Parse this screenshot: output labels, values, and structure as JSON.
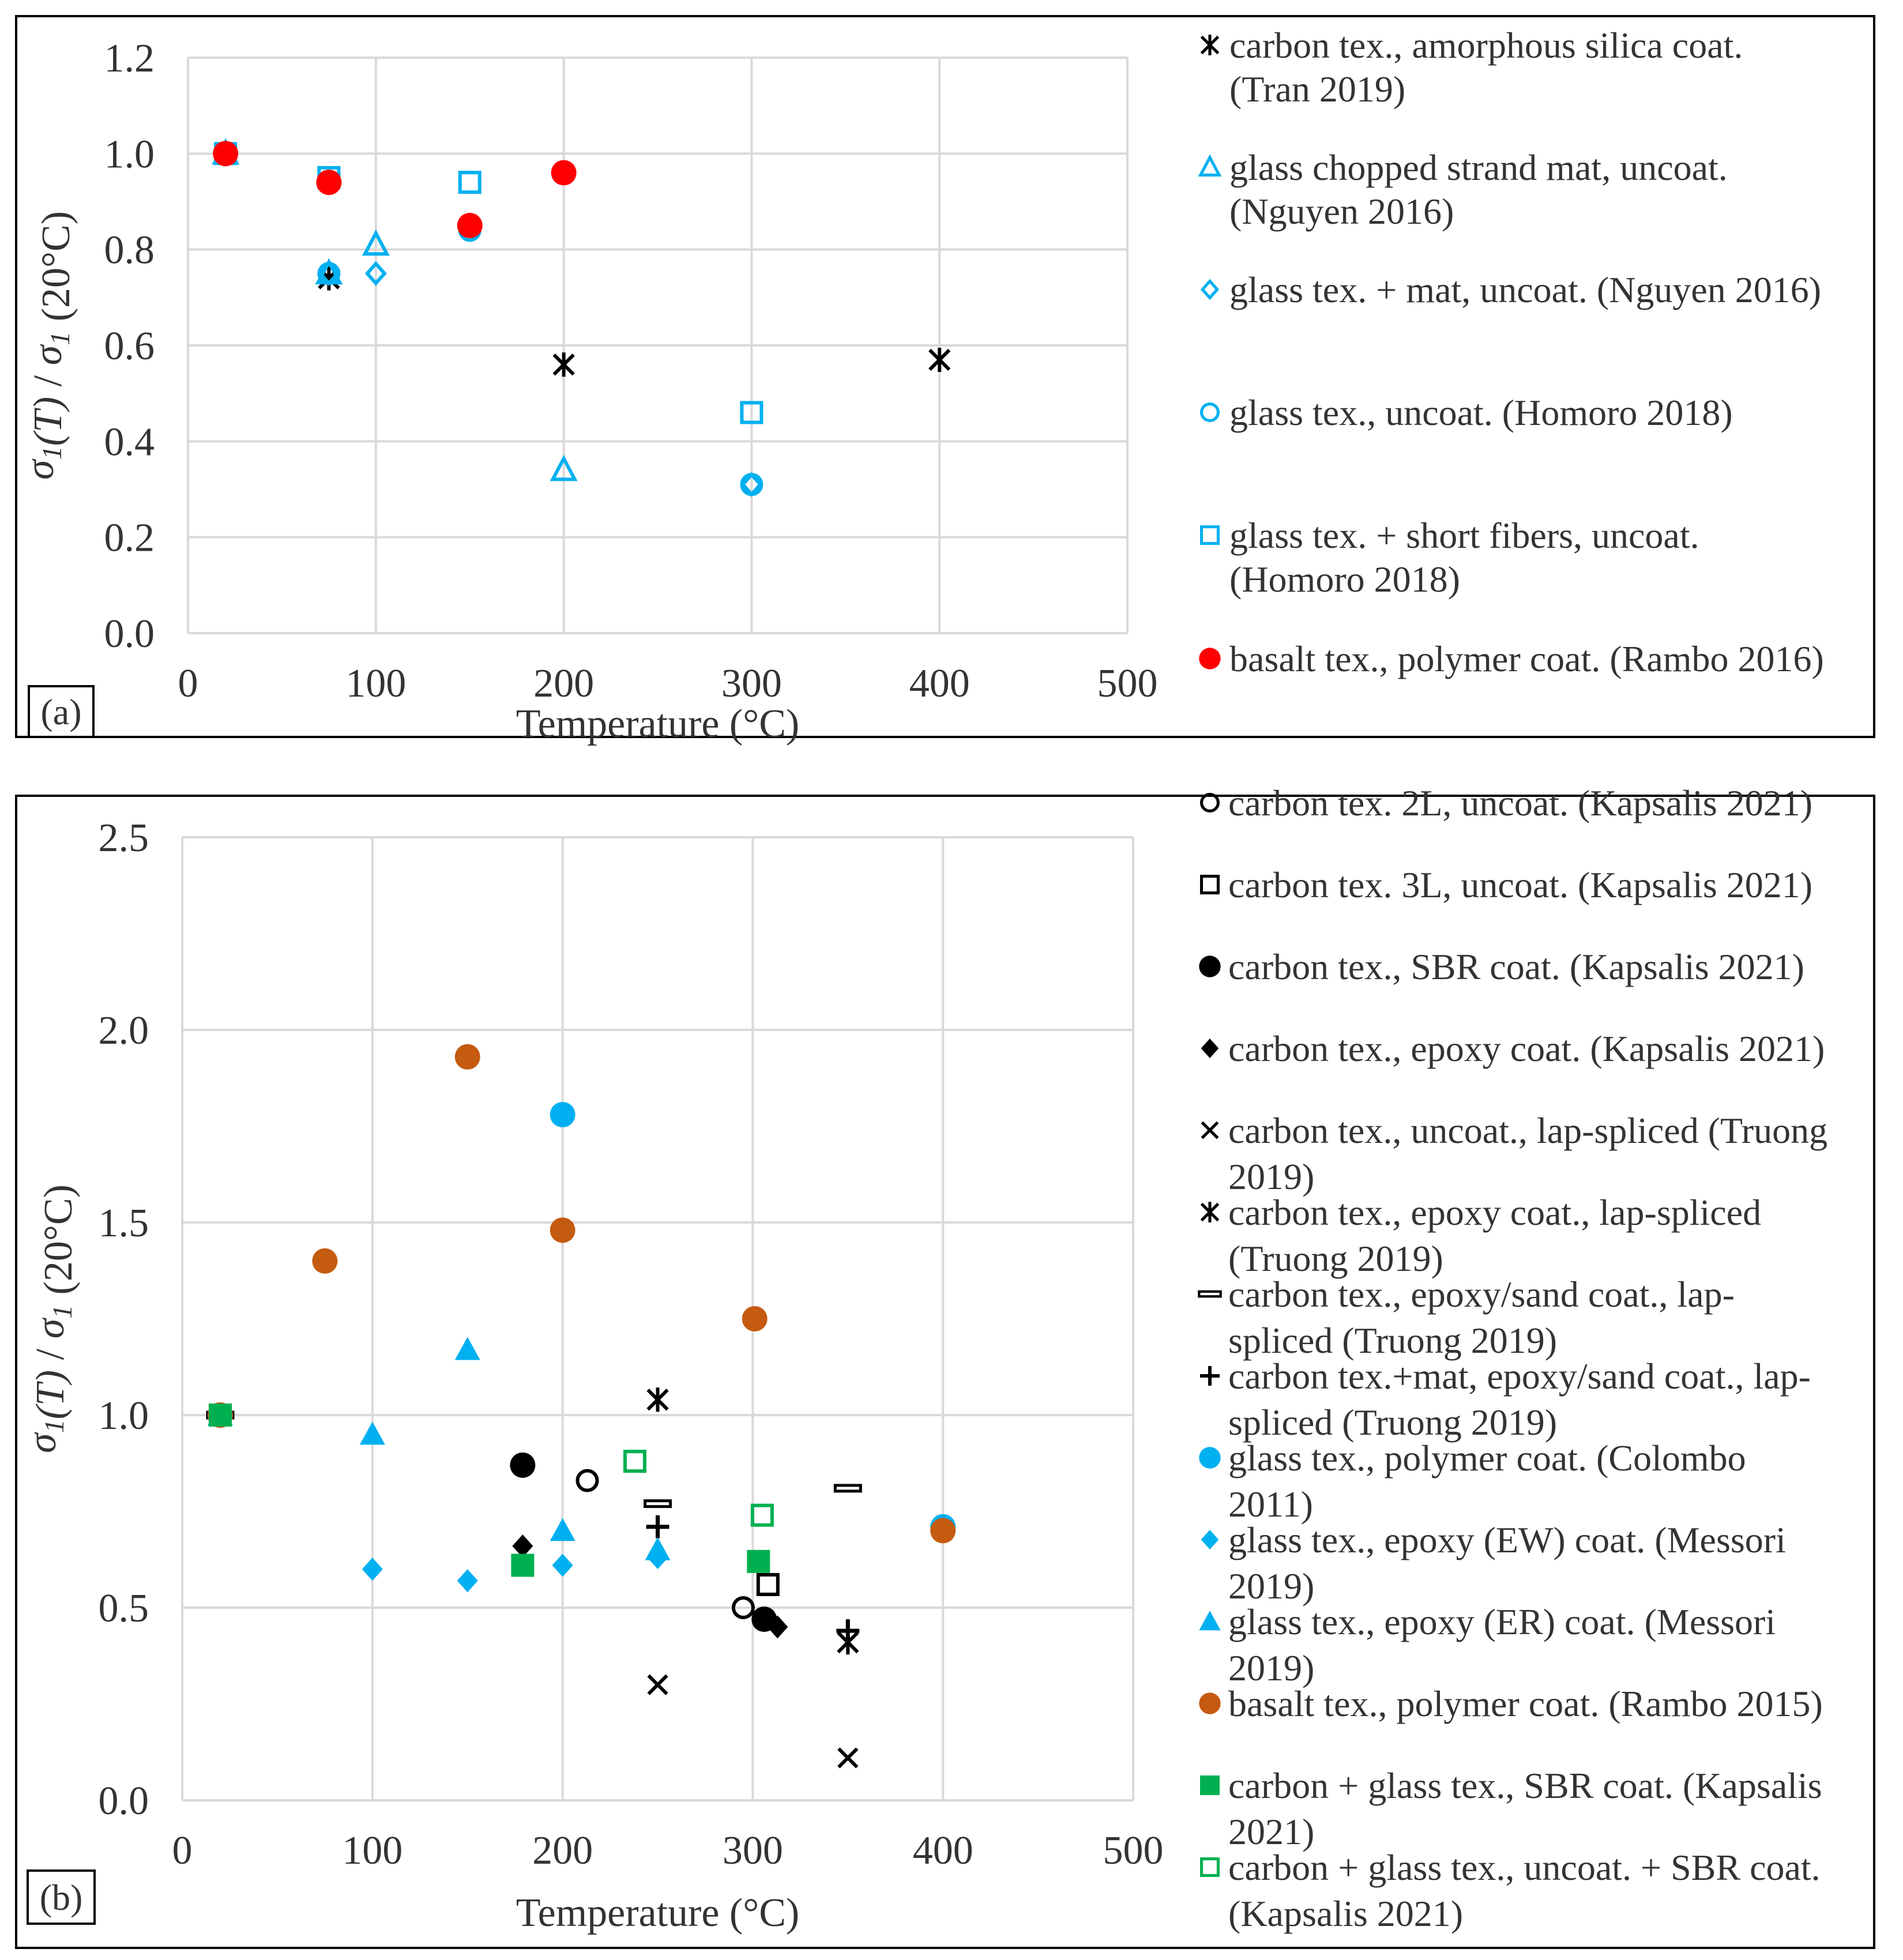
{
  "colors": {
    "black": "#000000",
    "blue": "#00b0f0",
    "red": "#ff0000",
    "orange": "#c55a11",
    "green": "#00b050",
    "grid": "#d9d9d9",
    "axis_text": "#404040"
  },
  "chart_data": [
    {
      "type": "scatter",
      "panel_label": "(a)",
      "xlabel": "Temperature (°C)",
      "ylabel": "σ1(T) / σ1 (20°C)",
      "ylabel_parts": [
        {
          "t": "σ",
          "it": true
        },
        {
          "t": "1",
          "it": true,
          "sub": true
        },
        {
          "t": "(",
          "it": true
        },
        {
          "t": "T",
          "it": true
        },
        {
          "t": ")",
          "it": true
        },
        {
          "t": " / ",
          "it": false
        },
        {
          "t": "σ",
          "it": true
        },
        {
          "t": "1",
          "it": true,
          "sub": true
        },
        {
          "t": " (20°C)",
          "it": false
        }
      ],
      "xlim": [
        0,
        500
      ],
      "ylim": [
        0,
        1.2
      ],
      "xticks": [
        "0",
        "100",
        "200",
        "300",
        "400",
        "500"
      ],
      "xtick_values": [
        0,
        100,
        200,
        300,
        400,
        500
      ],
      "yticks": [
        "0.0",
        "0.2",
        "0.4",
        "0.6",
        "0.8",
        "1.0",
        "1.2"
      ],
      "ytick_values": [
        0,
        0.2,
        0.4,
        0.6,
        0.8,
        1.0,
        1.2
      ],
      "series": [
        {
          "name": "carbon tex., amorphous silica coat. (Tran 2019)",
          "label_lines": [
            "carbon tex., amorphous silica coat.",
            "(Tran 2019)"
          ],
          "marker": "asterisk",
          "color": "#000000",
          "x": [
            20,
            75,
            200,
            400
          ],
          "y": [
            1.0,
            0.74,
            0.56,
            0.57
          ]
        },
        {
          "name": "glass chopped strand mat, uncoat. (Nguyen 2016)",
          "label_lines": [
            "glass chopped strand mat, uncoat.",
            "(Nguyen 2016)"
          ],
          "marker": "triangle-open",
          "color": "#00b0f0",
          "x": [
            20,
            75,
            100,
            200
          ],
          "y": [
            1.0,
            0.75,
            0.81,
            0.34
          ]
        },
        {
          "name": "glass tex. + mat, uncoat. (Nguyen 2016)",
          "label_lines": [
            "glass tex. + mat, uncoat. (Nguyen 2016)"
          ],
          "marker": "diamond-open",
          "color": "#00b0f0",
          "x": [
            20,
            75,
            100,
            300
          ],
          "y": [
            1.0,
            0.75,
            0.75,
            0.31
          ]
        },
        {
          "name": "glass tex., uncoat. (Homoro 2018)",
          "label_lines": [
            "glass tex., uncoat. (Homoro 2018)"
          ],
          "marker": "circle-open",
          "color": "#00b0f0",
          "x": [
            20,
            75,
            150,
            300
          ],
          "y": [
            1.0,
            0.75,
            0.84,
            0.31
          ]
        },
        {
          "name": "glass tex. + short fibers, uncoat. (Homoro 2018)",
          "label_lines": [
            "glass tex. + short fibers, uncoat.",
            "(Homoro 2018)"
          ],
          "marker": "square-open",
          "color": "#00b0f0",
          "x": [
            20,
            75,
            150,
            300
          ],
          "y": [
            1.0,
            0.95,
            0.94,
            0.46
          ]
        },
        {
          "name": "basalt tex., polymer coat. (Rambo 2016)",
          "label_lines": [
            "basalt tex., polymer coat. (Rambo 2016)"
          ],
          "marker": "circle-filled",
          "color": "#ff0000",
          "x": [
            20,
            75,
            150,
            200
          ],
          "y": [
            1.0,
            0.94,
            0.85,
            0.96
          ]
        }
      ]
    },
    {
      "type": "scatter",
      "panel_label": "(b)",
      "xlabel": "Temperature (°C)",
      "ylabel": "σ1(T) / σ1 (20°C)",
      "ylabel_parts": [
        {
          "t": "σ",
          "it": true
        },
        {
          "t": "1",
          "it": true,
          "sub": true
        },
        {
          "t": "(",
          "it": true
        },
        {
          "t": "T",
          "it": true
        },
        {
          "t": ")",
          "it": true
        },
        {
          "t": " / ",
          "it": false
        },
        {
          "t": "σ",
          "it": true
        },
        {
          "t": "1",
          "it": true,
          "sub": true
        },
        {
          "t": " (20°C)",
          "it": false
        }
      ],
      "xlim": [
        0,
        500
      ],
      "ylim": [
        0,
        2.5
      ],
      "xticks": [
        "0",
        "100",
        "200",
        "300",
        "400",
        "500"
      ],
      "xtick_values": [
        0,
        100,
        200,
        300,
        400,
        500
      ],
      "yticks": [
        "0.0",
        "0.5",
        "1.0",
        "1.5",
        "2.0",
        "2.5"
      ],
      "ytick_values": [
        0,
        0.5,
        1.0,
        1.5,
        2.0,
        2.5
      ],
      "series": [
        {
          "name": "carbon tex. 2L, uncoat. (Kapsalis 2021)",
          "label_lines": [
            "carbon tex. 2L, uncoat. (Kapsalis 2021)"
          ],
          "marker": "circle-open",
          "color": "#000000",
          "x": [
            20,
            213,
            295
          ],
          "y": [
            1.0,
            0.83,
            0.5
          ]
        },
        {
          "name": "carbon tex. 3L, uncoat. (Kapsalis 2021)",
          "label_lines": [
            "carbon tex. 3L, uncoat. (Kapsalis 2021)"
          ],
          "marker": "square-open",
          "color": "#000000",
          "x": [
            20,
            308
          ],
          "y": [
            1.0,
            0.56
          ]
        },
        {
          "name": "carbon tex., SBR coat. (Kapsalis 2021)",
          "label_lines": [
            "carbon tex., SBR coat. (Kapsalis 2021)"
          ],
          "marker": "circle-filled",
          "color": "#000000",
          "x": [
            20,
            179,
            306
          ],
          "y": [
            1.0,
            0.87,
            0.47
          ]
        },
        {
          "name": "carbon tex., epoxy coat. (Kapsalis 2021)",
          "label_lines": [
            "carbon tex., epoxy coat. (Kapsalis 2021)"
          ],
          "marker": "diamond-filled",
          "color": "#000000",
          "x": [
            20,
            179,
            313
          ],
          "y": [
            1.0,
            0.66,
            0.45
          ]
        },
        {
          "name": "carbon tex., uncoat., lap-spliced (Truong 2019)",
          "label_lines": [
            "carbon tex., uncoat., lap-spliced (Truong",
            "2019)"
          ],
          "marker": "x",
          "color": "#000000",
          "x": [
            20,
            250,
            350
          ],
          "y": [
            1.0,
            0.3,
            0.11
          ]
        },
        {
          "name": "carbon tex., epoxy coat., lap-spliced (Truong 2019)",
          "label_lines": [
            "carbon tex., epoxy coat., lap-spliced",
            "(Truong 2019)"
          ],
          "marker": "asterisk",
          "color": "#000000",
          "x": [
            20,
            250,
            350
          ],
          "y": [
            1.0,
            1.04,
            0.41
          ]
        },
        {
          "name": "carbon tex., epoxy/sand coat., lap-spliced (Truong 2019)",
          "label_lines": [
            "carbon tex., epoxy/sand coat., lap-",
            "spliced  (Truong 2019)"
          ],
          "marker": "dash-open",
          "color": "#000000",
          "x": [
            20,
            250,
            350
          ],
          "y": [
            1.0,
            0.77,
            0.81
          ]
        },
        {
          "name": "carbon tex.+mat, epoxy/sand coat., lap-spliced (Truong 2019)",
          "label_lines": [
            "carbon tex.+mat, epoxy/sand coat., lap-",
            "spliced (Truong 2019)"
          ],
          "marker": "plus",
          "color": "#000000",
          "x": [
            20,
            250,
            350
          ],
          "y": [
            1.0,
            0.71,
            0.44
          ]
        },
        {
          "name": "glass tex., polymer coat. (Colombo 2011)",
          "label_lines": [
            "glass tex., polymer coat. (Colombo",
            "2011)"
          ],
          "marker": "circle-filled",
          "color": "#00b0f0",
          "x": [
            20,
            200,
            400
          ],
          "y": [
            1.0,
            1.78,
            0.71
          ]
        },
        {
          "name": "glass tex., epoxy (EW) coat. (Messori 2019)",
          "label_lines": [
            "glass tex., epoxy (EW) coat. (Messori",
            "2019)"
          ],
          "marker": "diamond-filled",
          "color": "#00b0f0",
          "x": [
            20,
            100,
            150,
            200,
            250
          ],
          "y": [
            1.0,
            0.6,
            0.57,
            0.61,
            0.63
          ]
        },
        {
          "name": "glass tex., epoxy (ER) coat. (Messori 2019)",
          "label_lines": [
            "glass tex., epoxy (ER) coat. (Messori",
            "2019)"
          ],
          "marker": "triangle-filled",
          "color": "#00b0f0",
          "x": [
            20,
            100,
            150,
            200,
            250
          ],
          "y": [
            1.0,
            0.95,
            1.17,
            0.7,
            0.65
          ]
        },
        {
          "name": "basalt tex., polymer coat. (Rambo 2015)",
          "label_lines": [
            "basalt tex., polymer coat. (Rambo 2015)"
          ],
          "marker": "circle-filled",
          "color": "#c55a11",
          "x": [
            20,
            75,
            150,
            200,
            301,
            400
          ],
          "y": [
            1.0,
            1.4,
            1.93,
            1.48,
            1.25,
            0.7
          ]
        },
        {
          "name": "carbon + glass tex., SBR coat. (Kapsalis 2021)",
          "label_lines": [
            "carbon + glass tex., SBR coat. (Kapsalis",
            "2021)"
          ],
          "marker": "square-filled",
          "color": "#00b050",
          "x": [
            20,
            179,
            303
          ],
          "y": [
            1.0,
            0.61,
            0.62
          ]
        },
        {
          "name": "carbon + glass tex., uncoat. + SBR coat. (Kapsalis 2021)",
          "label_lines": [
            "carbon + glass tex., uncoat. + SBR coat.",
            "(Kapsalis 2021)"
          ],
          "marker": "square-open",
          "color": "#00b050",
          "x": [
            20,
            238,
            305
          ],
          "y": [
            1.0,
            0.88,
            0.74
          ]
        }
      ]
    }
  ]
}
